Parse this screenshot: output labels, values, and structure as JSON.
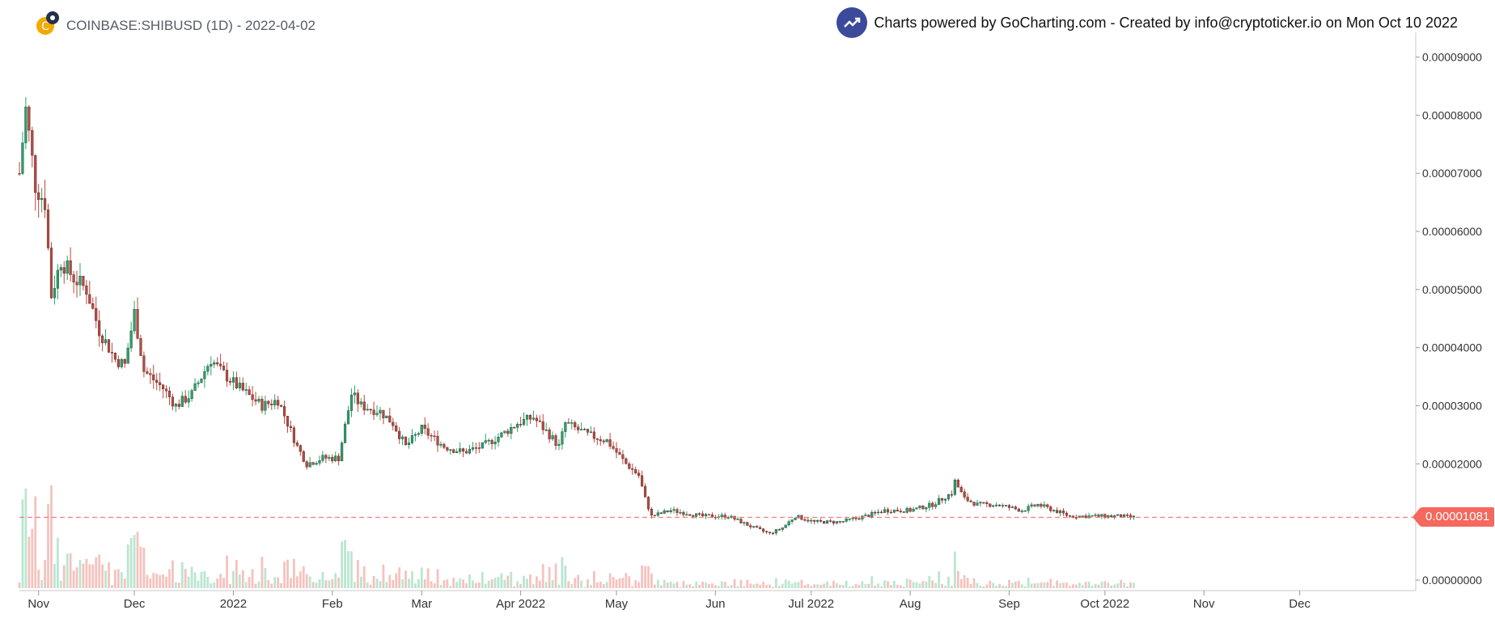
{
  "header": {
    "title": "COINBASE:SHIBUSD (1D) - 2022-04-02",
    "credit": "Charts powered by GoCharting.com - Created by info@cryptoticker.io on Mon Oct 10 2022"
  },
  "colors": {
    "up": "#26a36b",
    "down": "#c0463b",
    "up_volume": "#b9e6d0",
    "down_volume": "#f5c2bd",
    "last_price_line": "#f4685d",
    "axis_text": "#333333"
  },
  "chart_data": {
    "type": "candlestick",
    "interval": "1D",
    "symbol": "COINBASE:SHIBUSD",
    "x_tick_labels": [
      "Nov",
      "Dec",
      "2022",
      "Feb",
      "Mar",
      "Apr 2022",
      "May",
      "Jun",
      "Jul 2022",
      "Aug",
      "Sep",
      "Oct 2022",
      "Nov",
      "Dec"
    ],
    "y_tick_labels": [
      "0.00009000",
      "0.00008000",
      "0.00007000",
      "0.00006000",
      "0.00005000",
      "0.00004000",
      "0.00003000",
      "0.00002000",
      "0.00000000"
    ],
    "ylim": [
      0,
      9.3e-05
    ],
    "last_price": 1.081e-05,
    "last_price_label": "0.00001081",
    "close_series": [
      {
        "date": "2021-10-26",
        "close": 7e-05
      },
      {
        "date": "2021-10-28",
        "close": 8.1e-05
      },
      {
        "date": "2021-10-31",
        "close": 6.8e-05
      },
      {
        "date": "2021-11-03",
        "close": 6.5e-05
      },
      {
        "date": "2021-11-05",
        "close": 4.9e-05
      },
      {
        "date": "2021-11-08",
        "close": 5.5e-05
      },
      {
        "date": "2021-11-12",
        "close": 5.2e-05
      },
      {
        "date": "2021-11-16",
        "close": 5e-05
      },
      {
        "date": "2021-11-20",
        "close": 4.3e-05
      },
      {
        "date": "2021-11-25",
        "close": 3.8e-05
      },
      {
        "date": "2021-11-28",
        "close": 3.7e-05
      },
      {
        "date": "2021-12-01",
        "close": 4.6e-05
      },
      {
        "date": "2021-12-04",
        "close": 3.6e-05
      },
      {
        "date": "2021-12-10",
        "close": 3.3e-05
      },
      {
        "date": "2021-12-14",
        "close": 3e-05
      },
      {
        "date": "2021-12-19",
        "close": 3.2e-05
      },
      {
        "date": "2021-12-25",
        "close": 3.8e-05
      },
      {
        "date": "2021-12-28",
        "close": 3.6e-05
      },
      {
        "date": "2022-01-03",
        "close": 3.3e-05
      },
      {
        "date": "2022-01-10",
        "close": 3e-05
      },
      {
        "date": "2022-01-15",
        "close": 3.1e-05
      },
      {
        "date": "2022-01-21",
        "close": 2.3e-05
      },
      {
        "date": "2022-01-24",
        "close": 2e-05
      },
      {
        "date": "2022-01-29",
        "close": 2.1e-05
      },
      {
        "date": "2022-02-03",
        "close": 2.1e-05
      },
      {
        "date": "2022-02-07",
        "close": 3.2e-05
      },
      {
        "date": "2022-02-10",
        "close": 3e-05
      },
      {
        "date": "2022-02-16",
        "close": 2.9e-05
      },
      {
        "date": "2022-02-20",
        "close": 2.7e-05
      },
      {
        "date": "2022-02-24",
        "close": 2.3e-05
      },
      {
        "date": "2022-03-01",
        "close": 2.6e-05
      },
      {
        "date": "2022-03-08",
        "close": 2.3e-05
      },
      {
        "date": "2022-03-14",
        "close": 2.2e-05
      },
      {
        "date": "2022-03-20",
        "close": 2.3e-05
      },
      {
        "date": "2022-03-26",
        "close": 2.5e-05
      },
      {
        "date": "2022-03-31",
        "close": 2.7e-05
      },
      {
        "date": "2022-04-05",
        "close": 2.8e-05
      },
      {
        "date": "2022-04-10",
        "close": 2.5e-05
      },
      {
        "date": "2022-04-13",
        "close": 2.3e-05
      },
      {
        "date": "2022-04-15",
        "close": 2.7e-05
      },
      {
        "date": "2022-04-22",
        "close": 2.5e-05
      },
      {
        "date": "2022-04-28",
        "close": 2.4e-05
      },
      {
        "date": "2022-05-04",
        "close": 2e-05
      },
      {
        "date": "2022-05-08",
        "close": 1.8e-05
      },
      {
        "date": "2022-05-10",
        "close": 1.4e-05
      },
      {
        "date": "2022-05-12",
        "close": 1.1e-05
      },
      {
        "date": "2022-05-18",
        "close": 1.2e-05
      },
      {
        "date": "2022-05-28",
        "close": 1.1e-05
      },
      {
        "date": "2022-06-05",
        "close": 1.1e-05
      },
      {
        "date": "2022-06-13",
        "close": 9e-06
      },
      {
        "date": "2022-06-18",
        "close": 8e-06
      },
      {
        "date": "2022-06-22",
        "close": 9e-06
      },
      {
        "date": "2022-06-26",
        "close": 1.1e-05
      },
      {
        "date": "2022-07-02",
        "close": 1e-05
      },
      {
        "date": "2022-07-10",
        "close": 1e-05
      },
      {
        "date": "2022-07-18",
        "close": 1.1e-05
      },
      {
        "date": "2022-07-24",
        "close": 1.2e-05
      },
      {
        "date": "2022-08-01",
        "close": 1.2e-05
      },
      {
        "date": "2022-08-08",
        "close": 1.3e-05
      },
      {
        "date": "2022-08-14",
        "close": 1.5e-05
      },
      {
        "date": "2022-08-15",
        "close": 1.7e-05
      },
      {
        "date": "2022-08-18",
        "close": 1.4e-05
      },
      {
        "date": "2022-08-22",
        "close": 1.3e-05
      },
      {
        "date": "2022-08-28",
        "close": 1.3e-05
      },
      {
        "date": "2022-09-05",
        "close": 1.2e-05
      },
      {
        "date": "2022-09-10",
        "close": 1.3e-05
      },
      {
        "date": "2022-09-15",
        "close": 1.2e-05
      },
      {
        "date": "2022-09-20",
        "close": 1.1e-05
      },
      {
        "date": "2022-09-25",
        "close": 1.1e-05
      },
      {
        "date": "2022-10-01",
        "close": 1.1e-05
      },
      {
        "date": "2022-10-05",
        "close": 1.1e-05
      },
      {
        "date": "2022-10-10",
        "close": 1.081e-05
      }
    ],
    "grid": false,
    "legend": "none"
  }
}
